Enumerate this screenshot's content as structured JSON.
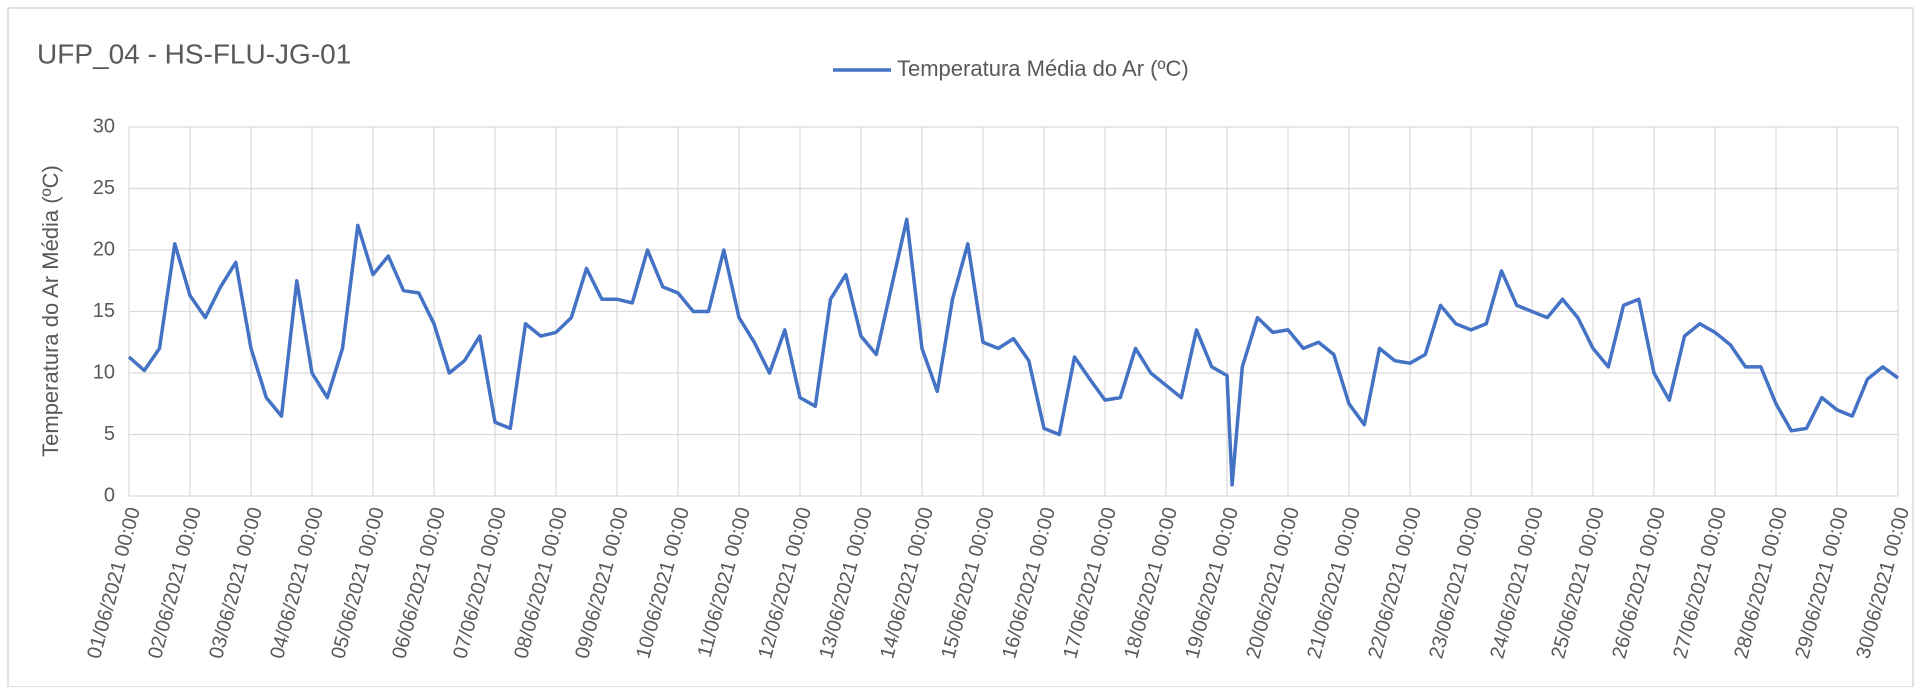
{
  "chart_data": {
    "type": "line",
    "title": "UFP_04 - HS-FLU-JG-01",
    "y_label": "Temperatura do Ar Média (ºC)",
    "x": [
      "01/06/2021 00:00",
      "01/06/2021 06:00",
      "01/06/2021 12:00",
      "01/06/2021 18:00",
      "02/06/2021 00:00",
      "02/06/2021 06:00",
      "02/06/2021 12:00",
      "02/06/2021 18:00",
      "03/06/2021 00:00",
      "03/06/2021 06:00",
      "03/06/2021 12:00",
      "03/06/2021 18:00",
      "04/06/2021 00:00",
      "04/06/2021 06:00",
      "04/06/2021 12:00",
      "04/06/2021 18:00",
      "05/06/2021 00:00",
      "05/06/2021 06:00",
      "05/06/2021 12:00",
      "05/06/2021 18:00",
      "06/06/2021 00:00",
      "06/06/2021 06:00",
      "06/06/2021 12:00",
      "06/06/2021 18:00",
      "07/06/2021 00:00",
      "07/06/2021 06:00",
      "07/06/2021 12:00",
      "07/06/2021 18:00",
      "08/06/2021 00:00",
      "08/06/2021 06:00",
      "08/06/2021 12:00",
      "08/06/2021 18:00",
      "09/06/2021 00:00",
      "09/06/2021 06:00",
      "09/06/2021 12:00",
      "09/06/2021 18:00",
      "10/06/2021 00:00",
      "10/06/2021 06:00",
      "10/06/2021 12:00",
      "10/06/2021 18:00",
      "11/06/2021 00:00",
      "11/06/2021 06:00",
      "11/06/2021 12:00",
      "11/06/2021 18:00",
      "12/06/2021 00:00",
      "12/06/2021 06:00",
      "12/06/2021 12:00",
      "12/06/2021 18:00",
      "13/06/2021 00:00",
      "13/06/2021 06:00",
      "13/06/2021 12:00",
      "13/06/2021 18:00",
      "14/06/2021 00:00",
      "14/06/2021 06:00",
      "14/06/2021 12:00",
      "14/06/2021 18:00",
      "15/06/2021 00:00",
      "15/06/2021 06:00",
      "15/06/2021 12:00",
      "15/06/2021 18:00",
      "16/06/2021 00:00",
      "16/06/2021 06:00",
      "16/06/2021 12:00",
      "16/06/2021 18:00",
      "17/06/2021 00:00",
      "17/06/2021 06:00",
      "17/06/2021 12:00",
      "17/06/2021 18:00",
      "18/06/2021 00:00",
      "18/06/2021 06:00",
      "18/06/2021 12:00",
      "18/06/2021 18:00",
      "19/06/2021 00:00",
      "19/06/2021 02:00",
      "19/06/2021 06:00",
      "19/06/2021 12:00",
      "19/06/2021 18:00",
      "20/06/2021 00:00",
      "20/06/2021 06:00",
      "20/06/2021 12:00",
      "20/06/2021 18:00",
      "21/06/2021 00:00",
      "21/06/2021 06:00",
      "21/06/2021 12:00",
      "21/06/2021 18:00",
      "22/06/2021 00:00",
      "22/06/2021 06:00",
      "22/06/2021 12:00",
      "22/06/2021 18:00",
      "23/06/2021 00:00",
      "23/06/2021 06:00",
      "23/06/2021 12:00",
      "23/06/2021 18:00",
      "24/06/2021 00:00",
      "24/06/2021 06:00",
      "24/06/2021 12:00",
      "24/06/2021 18:00",
      "25/06/2021 00:00",
      "25/06/2021 06:00",
      "25/06/2021 12:00",
      "25/06/2021 18:00",
      "26/06/2021 00:00",
      "26/06/2021 06:00",
      "26/06/2021 12:00",
      "26/06/2021 18:00",
      "27/06/2021 00:00",
      "27/06/2021 06:00",
      "27/06/2021 12:00",
      "27/06/2021 18:00",
      "28/06/2021 00:00",
      "28/06/2021 06:00",
      "28/06/2021 12:00",
      "28/06/2021 18:00",
      "29/06/2021 00:00",
      "29/06/2021 06:00",
      "29/06/2021 12:00",
      "29/06/2021 18:00",
      "30/06/2021 00:00"
    ],
    "series": [
      {
        "name": "Temperatura Média do Ar (ºC)",
        "color": "#4472c4",
        "values": [
          11.3,
          10.2,
          12,
          20.5,
          16.3,
          14.5,
          17,
          19,
          12,
          8,
          6.5,
          17.5,
          10,
          8,
          12,
          22,
          18,
          19.5,
          16.7,
          16.5,
          14,
          10,
          11,
          13,
          6,
          5.5,
          14,
          13,
          13.3,
          14.5,
          18.5,
          16,
          16,
          15.7,
          20,
          17,
          16.5,
          15,
          15,
          20,
          14.5,
          12.5,
          10,
          13.5,
          8,
          7.3,
          16,
          18,
          13,
          11.5,
          17,
          22.5,
          12,
          8.5,
          16,
          20.5,
          12.5,
          12,
          12.8,
          11,
          5.5,
          5,
          11.3,
          9.5,
          7.8,
          8,
          12,
          10,
          9,
          8,
          13.5,
          10.5,
          9.8,
          0.9,
          10.5,
          14.5,
          13.3,
          13.5,
          12,
          12.5,
          11.5,
          7.5,
          5.8,
          12,
          11,
          10.8,
          11.5,
          15.5,
          14,
          13.5,
          14,
          18.3,
          15.5,
          15,
          14.5,
          16,
          14.5,
          12,
          10.5,
          15.5,
          16,
          10,
          7.8,
          13,
          14,
          13.3,
          12.3,
          10.5,
          10.5,
          7.5,
          5.3,
          5.5,
          8,
          7,
          6.5,
          9.5,
          10.5,
          9.6
        ]
      }
    ],
    "xlim": [
      "01/06/2021 00:00",
      "30/06/2021 00:00"
    ],
    "xticks": [
      "01/06/2021 00:00",
      "02/06/2021 00:00",
      "03/06/2021 00:00",
      "04/06/2021 00:00",
      "05/06/2021 00:00",
      "06/06/2021 00:00",
      "07/06/2021 00:00",
      "08/06/2021 00:00",
      "09/06/2021 00:00",
      "10/06/2021 00:00",
      "11/06/2021 00:00",
      "12/06/2021 00:00",
      "13/06/2021 00:00",
      "14/06/2021 00:00",
      "15/06/2021 00:00",
      "16/06/2021 00:00",
      "17/06/2021 00:00",
      "18/06/2021 00:00",
      "19/06/2021 00:00",
      "20/06/2021 00:00",
      "21/06/2021 00:00",
      "22/06/2021 00:00",
      "23/06/2021 00:00",
      "24/06/2021 00:00",
      "25/06/2021 00:00",
      "26/06/2021 00:00",
      "27/06/2021 00:00",
      "28/06/2021 00:00",
      "29/06/2021 00:00",
      "30/06/2021 00:00"
    ],
    "ylim": [
      0,
      30
    ],
    "yticks": [
      0,
      5,
      10,
      15,
      20,
      25,
      30
    ],
    "grid": true,
    "legend": "top"
  }
}
